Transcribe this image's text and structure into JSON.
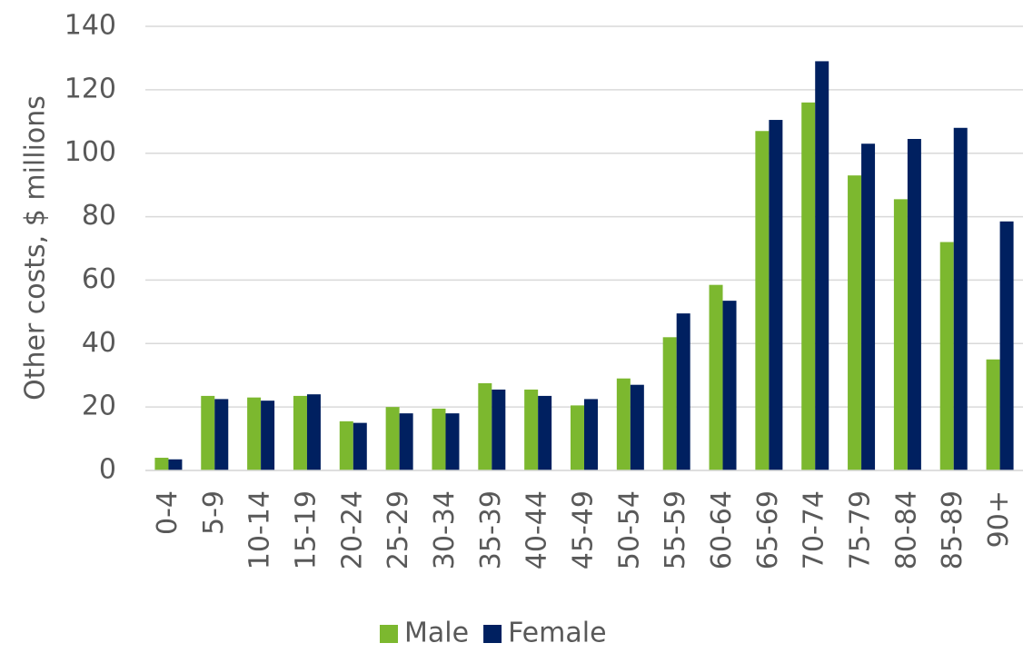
{
  "chart_data": {
    "type": "bar",
    "ylabel": "Other costs, $ millions",
    "categories": [
      "0-4",
      "5-9",
      "10-14",
      "15-19",
      "20-24",
      "25-29",
      "30-34",
      "35-39",
      "40-44",
      "45-49",
      "50-54",
      "55-59",
      "60-64",
      "65-69",
      "70-74",
      "75-79",
      "80-84",
      "85-89",
      "90+"
    ],
    "series": [
      {
        "name": "Male",
        "color": "#7cb82f",
        "values": [
          4,
          23.5,
          23,
          23.5,
          15.5,
          20,
          19.5,
          27.5,
          25.5,
          20.5,
          29,
          42,
          58.5,
          107,
          116,
          93,
          85.5,
          72,
          35
        ]
      },
      {
        "name": "Female",
        "color": "#002060",
        "values": [
          3.5,
          22.5,
          22,
          24,
          15,
          18,
          18,
          25.5,
          23.5,
          22.5,
          27,
          49.5,
          53.5,
          110.5,
          129,
          103,
          104.5,
          108,
          78.5
        ]
      }
    ],
    "ylim": [
      0,
      140
    ],
    "yticks": [
      0,
      20,
      40,
      60,
      80,
      100,
      120,
      140
    ],
    "grid": true,
    "legend": "bottom"
  }
}
